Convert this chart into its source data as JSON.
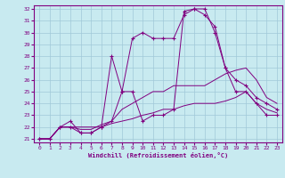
{
  "xlabel": "Windchill (Refroidissement éolien,°C)",
  "bg_color": "#c8eaf0",
  "line_color": "#800080",
  "grid_color": "#a0c8d8",
  "xlim": [
    -0.5,
    23.5
  ],
  "ylim": [
    20.7,
    32.3
  ],
  "yticks": [
    21,
    22,
    23,
    24,
    25,
    26,
    27,
    28,
    29,
    30,
    31,
    32
  ],
  "xticks": [
    0,
    1,
    2,
    3,
    4,
    5,
    6,
    7,
    8,
    9,
    10,
    11,
    12,
    13,
    14,
    15,
    16,
    17,
    18,
    19,
    20,
    21,
    22,
    23
  ],
  "lines": [
    {
      "x": [
        0,
        1,
        2,
        3,
        4,
        5,
        6,
        7,
        8,
        9,
        10,
        11,
        12,
        13,
        14,
        15,
        16,
        17,
        18,
        19,
        20,
        21,
        22,
        23
      ],
      "y": [
        21,
        21,
        22,
        22,
        21.5,
        21.5,
        22.0,
        22.5,
        25.0,
        29.5,
        30.0,
        29.5,
        29.5,
        29.5,
        31.5,
        32.0,
        32.0,
        30.0,
        27.0,
        26.0,
        25.5,
        24.5,
        24.0,
        23.5
      ],
      "marker": "+"
    },
    {
      "x": [
        0,
        1,
        2,
        3,
        4,
        5,
        6,
        7,
        8,
        9,
        10,
        11,
        12,
        13,
        14,
        15,
        16,
        17,
        18,
        19,
        20,
        21,
        22,
        23
      ],
      "y": [
        21,
        21,
        22,
        22.5,
        21.5,
        21.5,
        22.0,
        28.0,
        25.0,
        25.0,
        22.5,
        23.0,
        23.0,
        23.5,
        31.8,
        32.0,
        31.5,
        30.5,
        27.0,
        25.0,
        25.0,
        24.0,
        23.0,
        23.0
      ],
      "marker": "+"
    },
    {
      "x": [
        0,
        1,
        2,
        3,
        4,
        5,
        6,
        7,
        8,
        9,
        10,
        11,
        12,
        13,
        14,
        15,
        16,
        17,
        18,
        19,
        20,
        21,
        22,
        23
      ],
      "y": [
        21,
        21,
        22,
        22.0,
        21.8,
        21.8,
        22.2,
        22.5,
        23.5,
        24.0,
        24.5,
        25.0,
        25.0,
        25.5,
        25.5,
        25.5,
        25.5,
        26.0,
        26.5,
        26.8,
        27.0,
        26.0,
        24.5,
        24.0
      ],
      "marker": null
    },
    {
      "x": [
        0,
        1,
        2,
        3,
        4,
        5,
        6,
        7,
        8,
        9,
        10,
        11,
        12,
        13,
        14,
        15,
        16,
        17,
        18,
        19,
        20,
        21,
        22,
        23
      ],
      "y": [
        21,
        21,
        22,
        22.0,
        22.0,
        22.0,
        22.0,
        22.3,
        22.5,
        22.7,
        23.0,
        23.2,
        23.5,
        23.5,
        23.8,
        24.0,
        24.0,
        24.0,
        24.2,
        24.5,
        25.0,
        24.0,
        23.5,
        23.2
      ],
      "marker": null
    }
  ]
}
